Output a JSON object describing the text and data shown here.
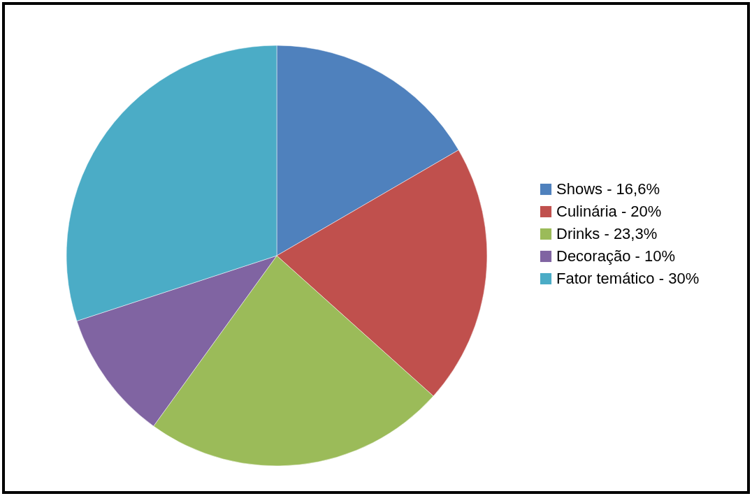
{
  "chart_data": {
    "type": "pie",
    "categories": [
      "Shows - 16,6%",
      "Culinária - 20%",
      "Drinks - 23,3%",
      "Decoração - 10%",
      "Fator temático - 30%"
    ],
    "values": [
      16.6,
      20,
      23.3,
      10,
      30
    ],
    "colors": [
      "#4f81bd",
      "#c0504d",
      "#9bbb59",
      "#8064a2",
      "#4bacc6"
    ],
    "legend": "right"
  }
}
